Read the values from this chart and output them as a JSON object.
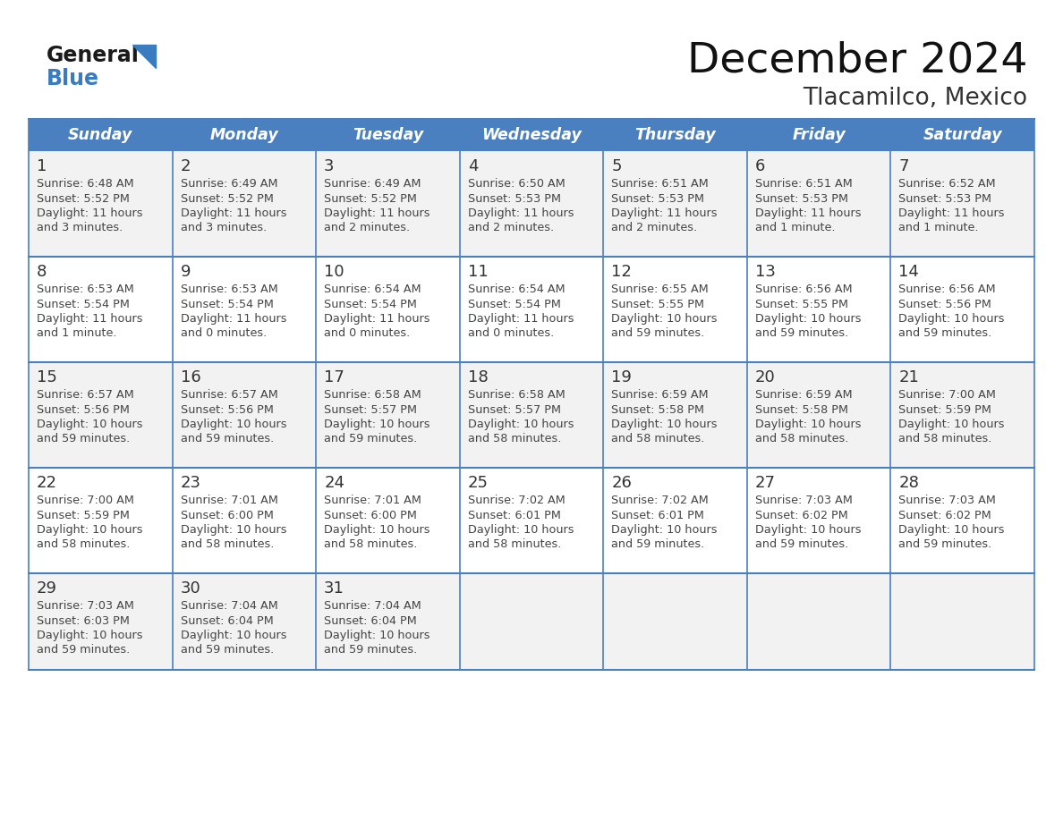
{
  "title": "December 2024",
  "subtitle": "Tlacamilco, Mexico",
  "days_of_week": [
    "Sunday",
    "Monday",
    "Tuesday",
    "Wednesday",
    "Thursday",
    "Friday",
    "Saturday"
  ],
  "header_bg": "#4A7FC0",
  "header_text": "#FFFFFF",
  "row_bg_odd": "#F2F2F2",
  "row_bg_even": "#FFFFFF",
  "text_color": "#444444",
  "border_color": "#4A7FC0",
  "logo_black": "#1a1a1a",
  "logo_blue": "#3A7CC0",
  "triangle_color": "#3A7CC0",
  "calendar": [
    [
      {
        "day": 1,
        "sunrise": "6:48 AM",
        "sunset": "5:52 PM",
        "daylight_line1": "Daylight: 11 hours",
        "daylight_line2": "and 3 minutes."
      },
      {
        "day": 2,
        "sunrise": "6:49 AM",
        "sunset": "5:52 PM",
        "daylight_line1": "Daylight: 11 hours",
        "daylight_line2": "and 3 minutes."
      },
      {
        "day": 3,
        "sunrise": "6:49 AM",
        "sunset": "5:52 PM",
        "daylight_line1": "Daylight: 11 hours",
        "daylight_line2": "and 2 minutes."
      },
      {
        "day": 4,
        "sunrise": "6:50 AM",
        "sunset": "5:53 PM",
        "daylight_line1": "Daylight: 11 hours",
        "daylight_line2": "and 2 minutes."
      },
      {
        "day": 5,
        "sunrise": "6:51 AM",
        "sunset": "5:53 PM",
        "daylight_line1": "Daylight: 11 hours",
        "daylight_line2": "and 2 minutes."
      },
      {
        "day": 6,
        "sunrise": "6:51 AM",
        "sunset": "5:53 PM",
        "daylight_line1": "Daylight: 11 hours",
        "daylight_line2": "and 1 minute."
      },
      {
        "day": 7,
        "sunrise": "6:52 AM",
        "sunset": "5:53 PM",
        "daylight_line1": "Daylight: 11 hours",
        "daylight_line2": "and 1 minute."
      }
    ],
    [
      {
        "day": 8,
        "sunrise": "6:53 AM",
        "sunset": "5:54 PM",
        "daylight_line1": "Daylight: 11 hours",
        "daylight_line2": "and 1 minute."
      },
      {
        "day": 9,
        "sunrise": "6:53 AM",
        "sunset": "5:54 PM",
        "daylight_line1": "Daylight: 11 hours",
        "daylight_line2": "and 0 minutes."
      },
      {
        "day": 10,
        "sunrise": "6:54 AM",
        "sunset": "5:54 PM",
        "daylight_line1": "Daylight: 11 hours",
        "daylight_line2": "and 0 minutes."
      },
      {
        "day": 11,
        "sunrise": "6:54 AM",
        "sunset": "5:54 PM",
        "daylight_line1": "Daylight: 11 hours",
        "daylight_line2": "and 0 minutes."
      },
      {
        "day": 12,
        "sunrise": "6:55 AM",
        "sunset": "5:55 PM",
        "daylight_line1": "Daylight: 10 hours",
        "daylight_line2": "and 59 minutes."
      },
      {
        "day": 13,
        "sunrise": "6:56 AM",
        "sunset": "5:55 PM",
        "daylight_line1": "Daylight: 10 hours",
        "daylight_line2": "and 59 minutes."
      },
      {
        "day": 14,
        "sunrise": "6:56 AM",
        "sunset": "5:56 PM",
        "daylight_line1": "Daylight: 10 hours",
        "daylight_line2": "and 59 minutes."
      }
    ],
    [
      {
        "day": 15,
        "sunrise": "6:57 AM",
        "sunset": "5:56 PM",
        "daylight_line1": "Daylight: 10 hours",
        "daylight_line2": "and 59 minutes."
      },
      {
        "day": 16,
        "sunrise": "6:57 AM",
        "sunset": "5:56 PM",
        "daylight_line1": "Daylight: 10 hours",
        "daylight_line2": "and 59 minutes."
      },
      {
        "day": 17,
        "sunrise": "6:58 AM",
        "sunset": "5:57 PM",
        "daylight_line1": "Daylight: 10 hours",
        "daylight_line2": "and 59 minutes."
      },
      {
        "day": 18,
        "sunrise": "6:58 AM",
        "sunset": "5:57 PM",
        "daylight_line1": "Daylight: 10 hours",
        "daylight_line2": "and 58 minutes."
      },
      {
        "day": 19,
        "sunrise": "6:59 AM",
        "sunset": "5:58 PM",
        "daylight_line1": "Daylight: 10 hours",
        "daylight_line2": "and 58 minutes."
      },
      {
        "day": 20,
        "sunrise": "6:59 AM",
        "sunset": "5:58 PM",
        "daylight_line1": "Daylight: 10 hours",
        "daylight_line2": "and 58 minutes."
      },
      {
        "day": 21,
        "sunrise": "7:00 AM",
        "sunset": "5:59 PM",
        "daylight_line1": "Daylight: 10 hours",
        "daylight_line2": "and 58 minutes."
      }
    ],
    [
      {
        "day": 22,
        "sunrise": "7:00 AM",
        "sunset": "5:59 PM",
        "daylight_line1": "Daylight: 10 hours",
        "daylight_line2": "and 58 minutes."
      },
      {
        "day": 23,
        "sunrise": "7:01 AM",
        "sunset": "6:00 PM",
        "daylight_line1": "Daylight: 10 hours",
        "daylight_line2": "and 58 minutes."
      },
      {
        "day": 24,
        "sunrise": "7:01 AM",
        "sunset": "6:00 PM",
        "daylight_line1": "Daylight: 10 hours",
        "daylight_line2": "and 58 minutes."
      },
      {
        "day": 25,
        "sunrise": "7:02 AM",
        "sunset": "6:01 PM",
        "daylight_line1": "Daylight: 10 hours",
        "daylight_line2": "and 58 minutes."
      },
      {
        "day": 26,
        "sunrise": "7:02 AM",
        "sunset": "6:01 PM",
        "daylight_line1": "Daylight: 10 hours",
        "daylight_line2": "and 59 minutes."
      },
      {
        "day": 27,
        "sunrise": "7:03 AM",
        "sunset": "6:02 PM",
        "daylight_line1": "Daylight: 10 hours",
        "daylight_line2": "and 59 minutes."
      },
      {
        "day": 28,
        "sunrise": "7:03 AM",
        "sunset": "6:02 PM",
        "daylight_line1": "Daylight: 10 hours",
        "daylight_line2": "and 59 minutes."
      }
    ],
    [
      {
        "day": 29,
        "sunrise": "7:03 AM",
        "sunset": "6:03 PM",
        "daylight_line1": "Daylight: 10 hours",
        "daylight_line2": "and 59 minutes."
      },
      {
        "day": 30,
        "sunrise": "7:04 AM",
        "sunset": "6:04 PM",
        "daylight_line1": "Daylight: 10 hours",
        "daylight_line2": "and 59 minutes."
      },
      {
        "day": 31,
        "sunrise": "7:04 AM",
        "sunset": "6:04 PM",
        "daylight_line1": "Daylight: 10 hours",
        "daylight_line2": "and 59 minutes."
      },
      null,
      null,
      null,
      null
    ]
  ]
}
